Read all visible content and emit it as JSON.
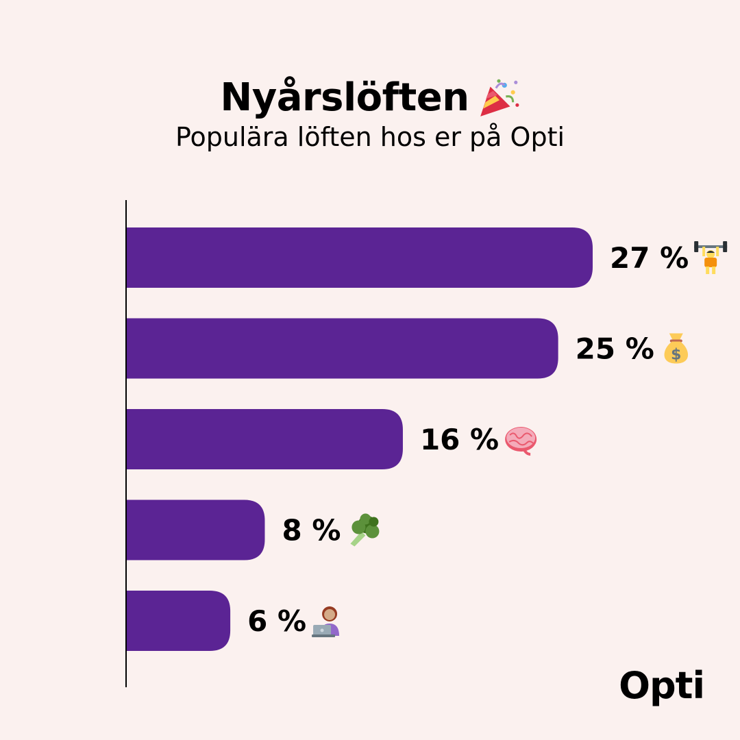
{
  "header": {
    "title": "Nyårslöften",
    "title_icon": "party-popper-icon",
    "subtitle": "Populära löften hos er på Opti"
  },
  "brand": {
    "name": "Opti"
  },
  "colors": {
    "bar": "#5b2494",
    "background": "#fbf1ef",
    "text": "#000000"
  },
  "chart_data": {
    "type": "bar",
    "orientation": "horizontal",
    "title": "Nyårslöften",
    "subtitle": "Populära löften hos er på Opti",
    "unit": "%",
    "categories": [
      "weightlifting",
      "money-bag",
      "brain",
      "broccoli",
      "laptop-person"
    ],
    "values": [
      27,
      25,
      16,
      8,
      6
    ],
    "labels": [
      "27 %",
      "25 %",
      "16 %",
      "8 %",
      "6 %"
    ],
    "xlim": [
      0,
      30
    ],
    "grid": false,
    "legend": "none"
  }
}
